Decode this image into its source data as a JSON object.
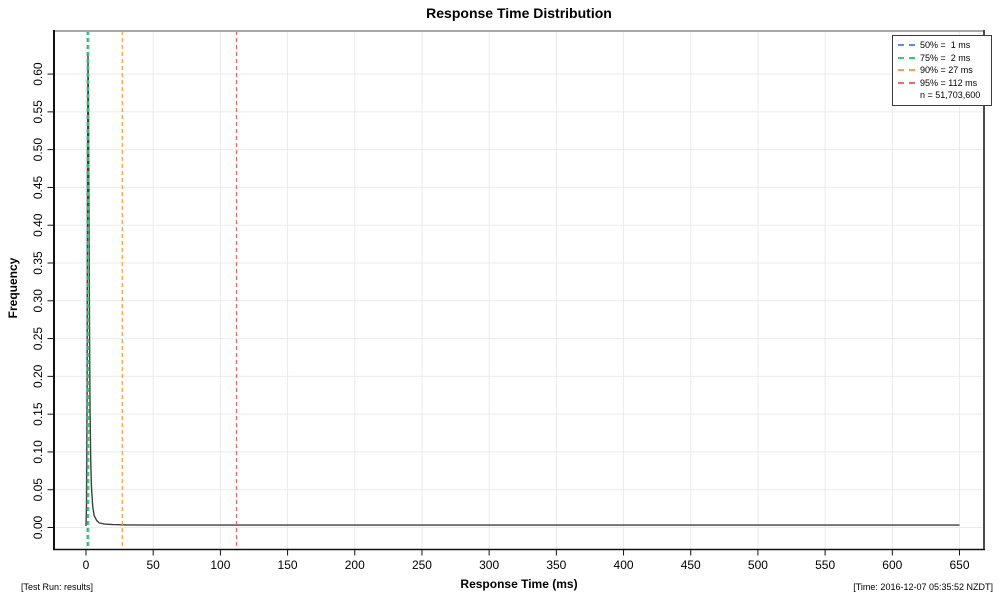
{
  "footer": {
    "test_run": "[Test Run: results]",
    "time": "[Time: 2016-12-07 05:35:52 NZDT]"
  },
  "chart_data": {
    "type": "line",
    "title": "Response Time Distribution",
    "xlabel": "Response Time (ms)",
    "ylabel": "Frequency",
    "xlim": [
      0,
      650
    ],
    "ylim": [
      0,
      0.658
    ],
    "x_ticks": [
      0,
      50,
      100,
      150,
      200,
      250,
      300,
      350,
      400,
      450,
      500,
      550,
      600,
      650
    ],
    "y_ticks": [
      0.0,
      0.05,
      0.1,
      0.15,
      0.2,
      0.25,
      0.3,
      0.35,
      0.4,
      0.45,
      0.5,
      0.55,
      0.6
    ],
    "grid": true,
    "grid_color": "#ebebeb",
    "curve_color": "#3f3f3f",
    "frame_colors": {
      "top": "#a8a8a8",
      "right": "#4a4a4a",
      "left": "#111111",
      "bottom": "#111111"
    },
    "curve": [
      [
        0,
        0.002
      ],
      [
        0.4,
        0.03
      ],
      [
        0.8,
        0.18
      ],
      [
        1.2,
        0.5
      ],
      [
        1.5,
        0.625
      ],
      [
        1.8,
        0.58
      ],
      [
        2.2,
        0.42
      ],
      [
        2.6,
        0.27
      ],
      [
        3,
        0.16
      ],
      [
        3.5,
        0.09
      ],
      [
        4,
        0.055
      ],
      [
        5,
        0.028
      ],
      [
        6,
        0.016
      ],
      [
        8,
        0.009
      ],
      [
        10,
        0.006
      ],
      [
        14,
        0.0045
      ],
      [
        20,
        0.0038
      ],
      [
        30,
        0.0034
      ],
      [
        50,
        0.0032
      ],
      [
        100,
        0.0032
      ],
      [
        200,
        0.0032
      ],
      [
        300,
        0.0032
      ],
      [
        400,
        0.0032
      ],
      [
        500,
        0.0032
      ],
      [
        650,
        0.0032
      ]
    ],
    "percentiles": [
      {
        "label": "50% =  1 ms",
        "ms": 1,
        "color": "#5b8dd6"
      },
      {
        "label": "75% =  2 ms",
        "ms": 2,
        "color": "#34cf62"
      },
      {
        "label": "90% = 27 ms",
        "ms": 27,
        "color": "#ff9e3d"
      },
      {
        "label": "95% = 112 ms",
        "ms": 112,
        "color": "#e96a6a"
      }
    ],
    "n_label": "n = 51,703,600",
    "legend_position": "top-right"
  }
}
